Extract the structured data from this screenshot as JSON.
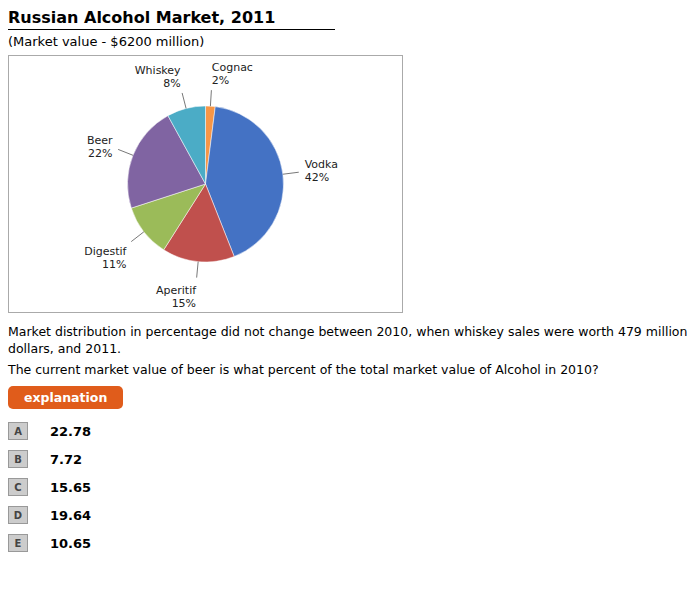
{
  "chart_data": {
    "type": "pie",
    "title": "Russian Alcohol Market, 2011",
    "subtitle": "(Market value - $6200 million)",
    "categories": [
      "Cognac",
      "Vodka",
      "Aperitif",
      "Digestif",
      "Beer",
      "Whiskey"
    ],
    "values": [
      2,
      42,
      15,
      11,
      22,
      8
    ],
    "value_labels": [
      "2%",
      "42%",
      "15%",
      "11%",
      "22%",
      "8%"
    ],
    "colors": [
      "#F79646",
      "#4472C4",
      "#C0504D",
      "#9BBB59",
      "#8064A2",
      "#4BACC6"
    ],
    "data_labels": true,
    "annotations": [
      "Market distribution in percentage did not change between 2010, when whiskey sales were worth 479 million dollars, and 2011.",
      "The current market value of beer is what percent of the total market value of Alcohol in 2010?",
      "explanation",
      "A",
      "22.78",
      "B",
      "7.72",
      "C",
      "15.65",
      "D",
      "19.64",
      "E",
      "10.65"
    ]
  }
}
